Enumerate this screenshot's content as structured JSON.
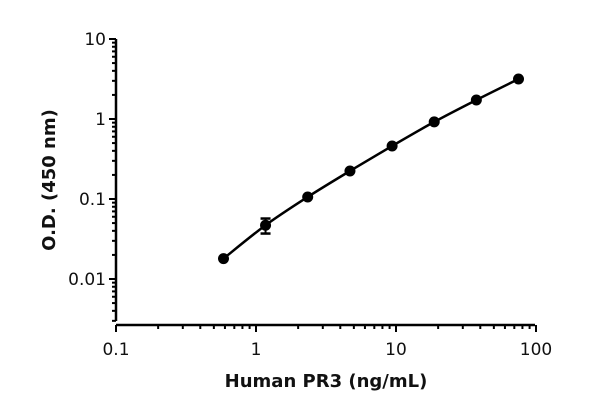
{
  "chart_data": {
    "type": "line",
    "title": "",
    "xlabel": "Human PR3 (ng/mL)",
    "ylabel": "O.D. (450 nm)",
    "xscale": "log",
    "yscale": "log",
    "xlim": [
      0.1,
      100
    ],
    "ylim": [
      0.003,
      10
    ],
    "x_ticks": [
      "0.1",
      "1",
      "10",
      "100"
    ],
    "y_ticks": [
      "0.01",
      "0.1",
      "1",
      "10"
    ],
    "grid": false,
    "legend": null,
    "series": [
      {
        "name": "Human PR3",
        "x": [
          0.586,
          1.17,
          2.34,
          4.69,
          9.38,
          18.75,
          37.5,
          75
        ],
        "y": [
          0.018,
          0.047,
          0.106,
          0.224,
          0.46,
          0.92,
          1.73,
          3.16
        ],
        "error": [
          0,
          0.01,
          0,
          0,
          0,
          0,
          0,
          0
        ],
        "marker": "circle",
        "color": "#000000"
      }
    ]
  }
}
